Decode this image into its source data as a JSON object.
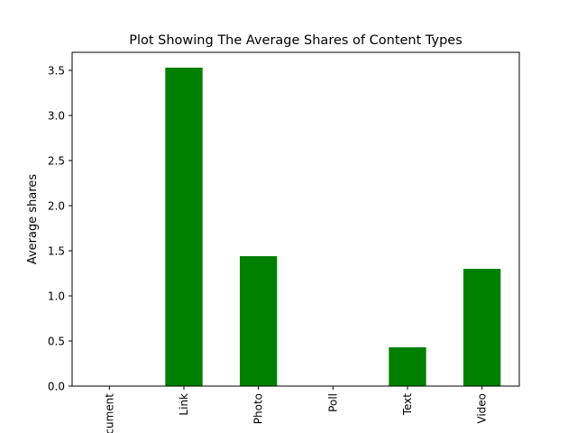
{
  "chart_data": {
    "type": "bar",
    "title": "Plot Showing The Average Shares of Content Types",
    "xlabel": "",
    "ylabel": "Average shares",
    "categories": [
      "Document",
      "Link",
      "Photo",
      "Poll",
      "Text",
      "Video"
    ],
    "values": [
      0,
      3.53,
      1.44,
      0,
      0.43,
      1.3
    ],
    "ylim": [
      0,
      3.7
    ],
    "yticks": [
      0.0,
      0.5,
      1.0,
      1.5,
      2.0,
      2.5,
      3.0,
      3.5
    ],
    "ytick_labels": [
      "0.0",
      "0.5",
      "1.0",
      "1.5",
      "2.0",
      "2.5",
      "3.0",
      "3.5"
    ],
    "bar_color": "#008000",
    "grid": false,
    "legend": "none"
  }
}
